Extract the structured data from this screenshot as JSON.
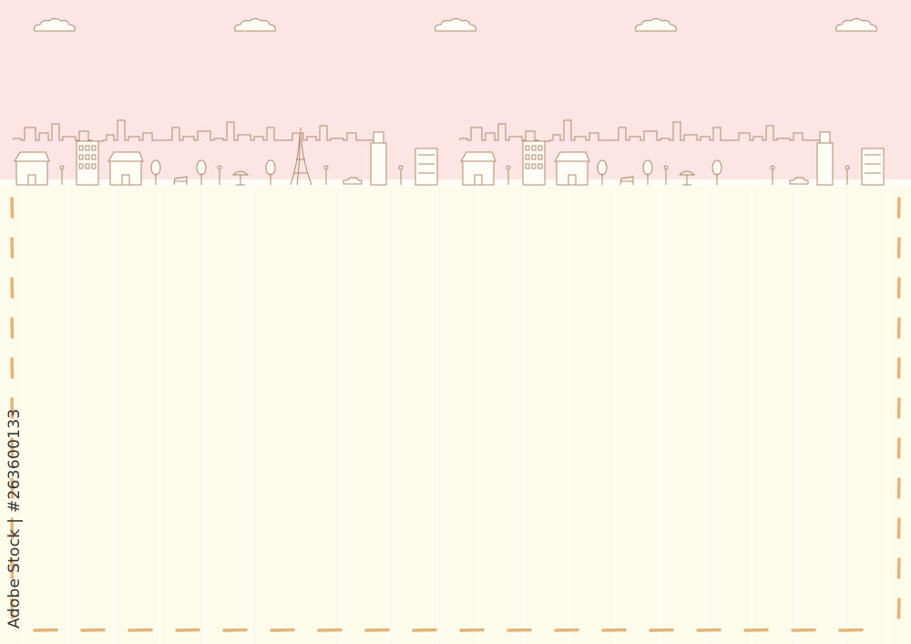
{
  "colors": {
    "sky": "#fde5e6",
    "paper": "#fdfbe9",
    "stripe": "#ffffff",
    "line_art": "#b08a6a",
    "dash_border": "#e2b47c"
  },
  "watermark": {
    "text": "Adobe Stock | #263600133"
  },
  "illustration": {
    "clouds": 5,
    "skyline_repeats": 2,
    "icons": [
      "cloud-icon",
      "house-icon",
      "building-icon",
      "tree-icon",
      "eiffel-tower-icon",
      "street-lamp-icon",
      "bench-icon",
      "car-icon",
      "cafe-umbrella-icon",
      "tower-icon"
    ]
  }
}
